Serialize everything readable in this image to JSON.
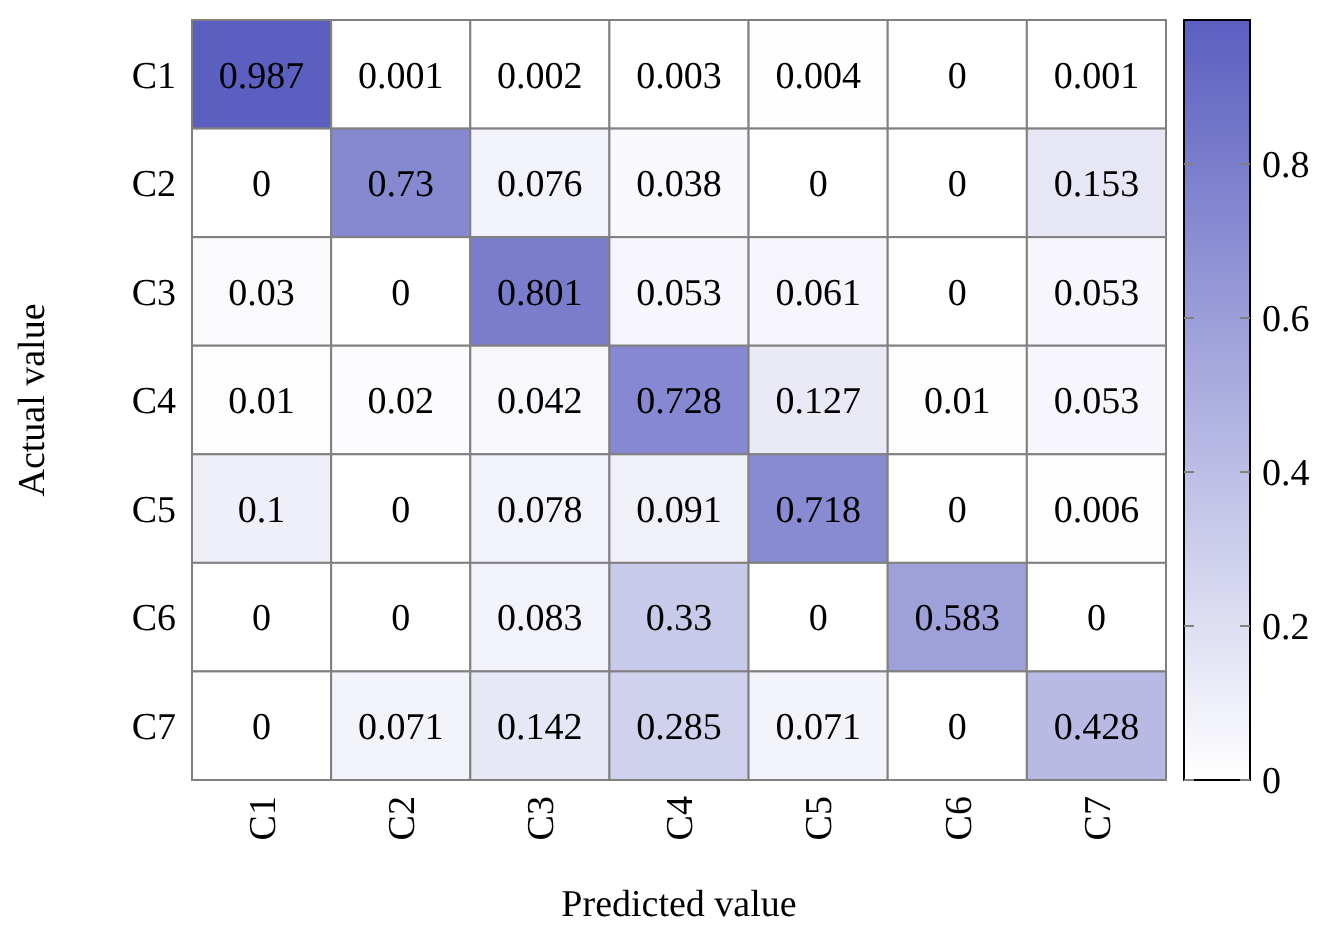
{
  "chart_data": {
    "type": "heatmap",
    "xlabel": "Predicted value",
    "ylabel": "Actual value",
    "categories": [
      "C1",
      "C2",
      "C3",
      "C4",
      "C5",
      "C6",
      "C7"
    ],
    "y_categories": [
      "C1",
      "C2",
      "C3",
      "C4",
      "C5",
      "C6",
      "C7"
    ],
    "cells": [
      [
        0.987,
        0.001,
        0.002,
        0.003,
        0.004,
        0,
        0.001
      ],
      [
        0,
        0.73,
        0.076,
        0.038,
        0,
        0,
        0.153
      ],
      [
        0.03,
        0,
        0.801,
        0.053,
        0.061,
        0,
        0.053
      ],
      [
        0.01,
        0.02,
        0.042,
        0.728,
        0.127,
        0.01,
        0.053
      ],
      [
        0.1,
        0,
        0.078,
        0.091,
        0.718,
        0,
        0.006
      ],
      [
        0,
        0,
        0.083,
        0.33,
        0,
        0.583,
        0
      ],
      [
        0,
        0.071,
        0.142,
        0.285,
        0.071,
        0,
        0.428
      ]
    ],
    "data_labels": true,
    "clim": [
      0,
      0.987
    ],
    "cticks": [
      0,
      0.2,
      0.4,
      0.6,
      0.8
    ],
    "color": "#5b5fc0"
  }
}
